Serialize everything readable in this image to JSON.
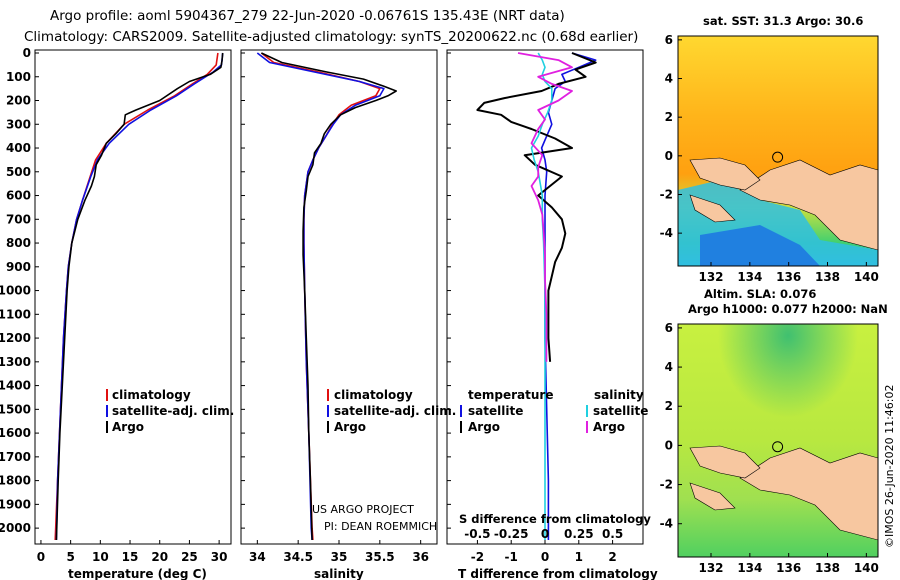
{
  "title": {
    "line1": "Argo profile: aoml 5904367_279 22-Jun-2020 -0.06761S 135.43E (NRT data)",
    "line2": "Climatology: CARS2009. Satellite-adjusted climatology: synTS_20200622.nc (0.68d earlier)"
  },
  "colors": {
    "climatology": "#e01010",
    "satellite": "#1010e0",
    "argo": "#000000",
    "argo_sal_diff": "#e020e0",
    "sat_sal_diff": "#20d0e0",
    "land": "#f7c7a0"
  },
  "depth_ticks": [
    0,
    100,
    200,
    300,
    400,
    500,
    600,
    700,
    800,
    900,
    1000,
    1100,
    1200,
    1300,
    1400,
    1500,
    1600,
    1700,
    1800,
    1900,
    2000
  ],
  "chart_data": [
    {
      "type": "line",
      "name": "temperature",
      "xlabel": "temperature (deg C)",
      "ylabel": "depth",
      "xlim": [
        -1,
        32
      ],
      "ylim": [
        2050,
        0
      ],
      "xticks": [
        "0",
        "5",
        "10",
        "15",
        "20",
        "25",
        "30"
      ],
      "xtick_values": [
        0,
        5,
        10,
        15,
        20,
        25,
        30
      ],
      "legend": [
        "climatology",
        "satellite-adj. clim.",
        "Argo"
      ],
      "series": [
        {
          "name": "climatology",
          "depth": [
            0,
            50,
            90,
            130,
            180,
            240,
            300,
            380,
            450,
            520,
            620,
            700,
            800,
            900,
            1000,
            1200,
            1500,
            1800,
            2050
          ],
          "values": [
            29.8,
            29.5,
            28.0,
            25.5,
            22.5,
            18.0,
            14.0,
            11.0,
            9.2,
            8.3,
            7.0,
            6.0,
            5.2,
            4.6,
            4.3,
            3.8,
            3.3,
            2.8,
            2.4
          ]
        },
        {
          "name": "satellite-adj. clim.",
          "depth": [
            0,
            50,
            80,
            130,
            180,
            240,
            300,
            380,
            450,
            520,
            620,
            700,
            800,
            900,
            1000,
            1200,
            1500,
            1800,
            2050
          ],
          "values": [
            30.6,
            30.4,
            29.0,
            25.8,
            22.8,
            18.5,
            14.8,
            11.5,
            9.5,
            8.4,
            7.0,
            6.0,
            5.2,
            4.6,
            4.3,
            3.8,
            3.3,
            2.8,
            2.6
          ]
        },
        {
          "name": "Argo",
          "depth": [
            0,
            30,
            60,
            90,
            120,
            150,
            200,
            240,
            260,
            300,
            340,
            380,
            430,
            470,
            520,
            560,
            620,
            700,
            800,
            900,
            1000,
            1100,
            1200,
            1300,
            1400,
            1500,
            1600,
            1800,
            2050
          ],
          "values": [
            30.6,
            30.5,
            30.3,
            28.5,
            25.0,
            23.0,
            20.0,
            16.0,
            14.2,
            14.0,
            12.6,
            11.0,
            10.2,
            9.3,
            9.0,
            8.5,
            7.4,
            6.2,
            5.2,
            4.7,
            4.4,
            4.2,
            4.0,
            3.8,
            3.6,
            3.4,
            3.2,
            2.9,
            2.6
          ]
        }
      ]
    },
    {
      "type": "line",
      "name": "salinity",
      "xlabel": "salinity",
      "xlim": [
        33.8,
        36.2
      ],
      "ylim": [
        2050,
        0
      ],
      "xticks": [
        "34",
        "34.5",
        "35",
        "35.5",
        "36"
      ],
      "xtick_values": [
        34,
        34.5,
        35,
        35.5,
        36
      ],
      "legend": [
        "climatology",
        "satellite-adj. clim.",
        "Argo"
      ],
      "annotation": [
        "US ARGO PROJECT",
        "PI: DEAN ROEMMICH"
      ],
      "series": [
        {
          "name": "climatology",
          "depth": [
            0,
            40,
            80,
            120,
            150,
            180,
            220,
            260,
            300,
            350,
            400,
            450,
            500,
            600,
            700,
            800,
            1000,
            1300,
            1600,
            2000,
            2050
          ],
          "values": [
            34.05,
            34.2,
            34.75,
            35.25,
            35.5,
            35.45,
            35.15,
            35.0,
            34.92,
            34.84,
            34.75,
            34.68,
            34.62,
            34.58,
            34.57,
            34.57,
            34.58,
            34.6,
            34.63,
            34.67,
            34.68
          ]
        },
        {
          "name": "satellite-adj. clim.",
          "depth": [
            0,
            40,
            80,
            120,
            150,
            180,
            220,
            260,
            300,
            350,
            400,
            450,
            500,
            600,
            700,
            800,
            1000,
            1300,
            1600,
            2000,
            2050
          ],
          "values": [
            34.0,
            34.15,
            34.7,
            35.25,
            35.55,
            35.5,
            35.2,
            35.02,
            34.93,
            34.84,
            34.75,
            34.68,
            34.62,
            34.58,
            34.57,
            34.57,
            34.58,
            34.6,
            34.63,
            34.66,
            34.67
          ]
        },
        {
          "name": "Argo",
          "depth": [
            0,
            40,
            80,
            110,
            140,
            160,
            180,
            200,
            230,
            260,
            300,
            340,
            380,
            420,
            470,
            520,
            580,
            650,
            750,
            850,
            1000,
            1200,
            1400,
            1600,
            1800,
            2050
          ],
          "values": [
            34.05,
            34.3,
            34.85,
            35.3,
            35.55,
            35.7,
            35.6,
            35.45,
            35.2,
            35.02,
            34.9,
            34.82,
            34.78,
            34.7,
            34.68,
            34.62,
            34.6,
            34.57,
            34.56,
            34.56,
            34.58,
            34.6,
            34.62,
            34.63,
            34.65,
            34.67
          ]
        }
      ]
    },
    {
      "type": "line",
      "name": "differences",
      "xlabel": "T difference from climatology",
      "xlabel_top": "S difference from climatology",
      "xlim": [
        -2.9,
        2.9
      ],
      "ylim": [
        2050,
        0
      ],
      "xticks": [
        "-2",
        "-1",
        "0",
        "1",
        "2"
      ],
      "xtick_values": [
        -2,
        -1,
        0,
        1,
        2
      ],
      "xticks_top": [
        "-0.5",
        "-0.25",
        "0",
        "0.25",
        "0.5"
      ],
      "legend_temperature": {
        "title": "temperature",
        "items": [
          "satellite",
          "Argo"
        ]
      },
      "legend_salinity": {
        "title": "salinity",
        "items": [
          "satellite",
          "Argo"
        ]
      },
      "series": [
        {
          "name": "T satellite",
          "depth": [
            0,
            30,
            60,
            90,
            120,
            150,
            200,
            250,
            300,
            350,
            400,
            450,
            500,
            600,
            700,
            800,
            900,
            1000,
            1200,
            1500,
            1800,
            2050
          ],
          "values": [
            0.8,
            1.5,
            1.0,
            0.5,
            0.6,
            0.3,
            0.2,
            0.1,
            0.2,
            0.05,
            -0.1,
            0.0,
            0.05,
            0.0,
            0.0,
            0.0,
            0.0,
            0.0,
            0.0,
            0.05,
            0.1,
            0.1
          ]
        },
        {
          "name": "T Argo",
          "depth": [
            0,
            40,
            70,
            100,
            130,
            160,
            190,
            210,
            240,
            260,
            290,
            320,
            360,
            400,
            430,
            470,
            520,
            600,
            650,
            700,
            760,
            820,
            880,
            940,
            1000,
            1100,
            1200,
            1300
          ],
          "values": [
            0.8,
            1.5,
            0.9,
            1.2,
            0.4,
            -0.1,
            -1.2,
            -1.8,
            -2.0,
            -1.3,
            -1.0,
            -0.4,
            0.3,
            0.8,
            -0.6,
            -0.3,
            0.5,
            -0.2,
            0.2,
            0.5,
            0.6,
            0.5,
            0.3,
            0.2,
            0.1,
            0.1,
            0.1,
            0.15
          ]
        },
        {
          "name": "S satellite",
          "depth": [
            0,
            30,
            60,
            90,
            120,
            150,
            200,
            250,
            300,
            350,
            400,
            450,
            500,
            600,
            700,
            800,
            1000,
            1300,
            1600,
            2050
          ],
          "values": [
            -0.05,
            -0.02,
            0.0,
            -0.02,
            0.0,
            0.05,
            0.05,
            0.02,
            -0.02,
            -0.05,
            -0.1,
            -0.08,
            -0.05,
            -0.02,
            -0.02,
            -0.01,
            0.0,
            0.0,
            0.0,
            0.0
          ]
        },
        {
          "name": "S Argo",
          "depth": [
            0,
            30,
            60,
            100,
            130,
            160,
            200,
            240,
            280,
            320,
            380,
            430,
            480,
            520,
            560,
            620,
            680,
            750,
            850,
            950,
            1100,
            1300
          ],
          "values": [
            -0.2,
            0.1,
            0.2,
            -0.05,
            0.05,
            0.2,
            0.1,
            -0.05,
            0.0,
            -0.05,
            -0.1,
            -0.02,
            -0.05,
            -0.05,
            -0.1,
            -0.05,
            -0.02,
            -0.01,
            0.0,
            0.0,
            0.01,
            0.01
          ]
        }
      ]
    }
  ],
  "maps": {
    "sst": {
      "title": "sat. SST: 31.3 Argo: 30.6",
      "xticks": [
        "132",
        "134",
        "136",
        "138",
        "140"
      ],
      "xtick_values": [
        132,
        134,
        136,
        138,
        140
      ],
      "yticks": [
        "6",
        "4",
        "2",
        "0",
        "-2",
        "-4"
      ],
      "ytick_values": [
        6,
        4,
        2,
        0,
        -2,
        -4
      ],
      "xlim": [
        130.3,
        140.6
      ],
      "ylim": [
        -5.7,
        6.2
      ],
      "argo_lon": 135.43,
      "argo_lat": -0.068
    },
    "sla": {
      "title_line1": "Altim. SLA: 0.076",
      "title_line2": "Argo h1000: 0.077 h2000: NaN",
      "xticks": [
        "132",
        "134",
        "136",
        "138",
        "140"
      ],
      "xtick_values": [
        132,
        134,
        136,
        138,
        140
      ],
      "yticks": [
        "6",
        "4",
        "2",
        "0",
        "-2",
        "-4"
      ],
      "ytick_values": [
        6,
        4,
        2,
        0,
        -2,
        -4
      ],
      "xlim": [
        130.3,
        140.6
      ],
      "ylim": [
        -5.7,
        6.2
      ],
      "argo_lon": 135.43,
      "argo_lat": -0.068
    }
  },
  "credit": "©IMOS 26-Jun-2020 11:46:02"
}
